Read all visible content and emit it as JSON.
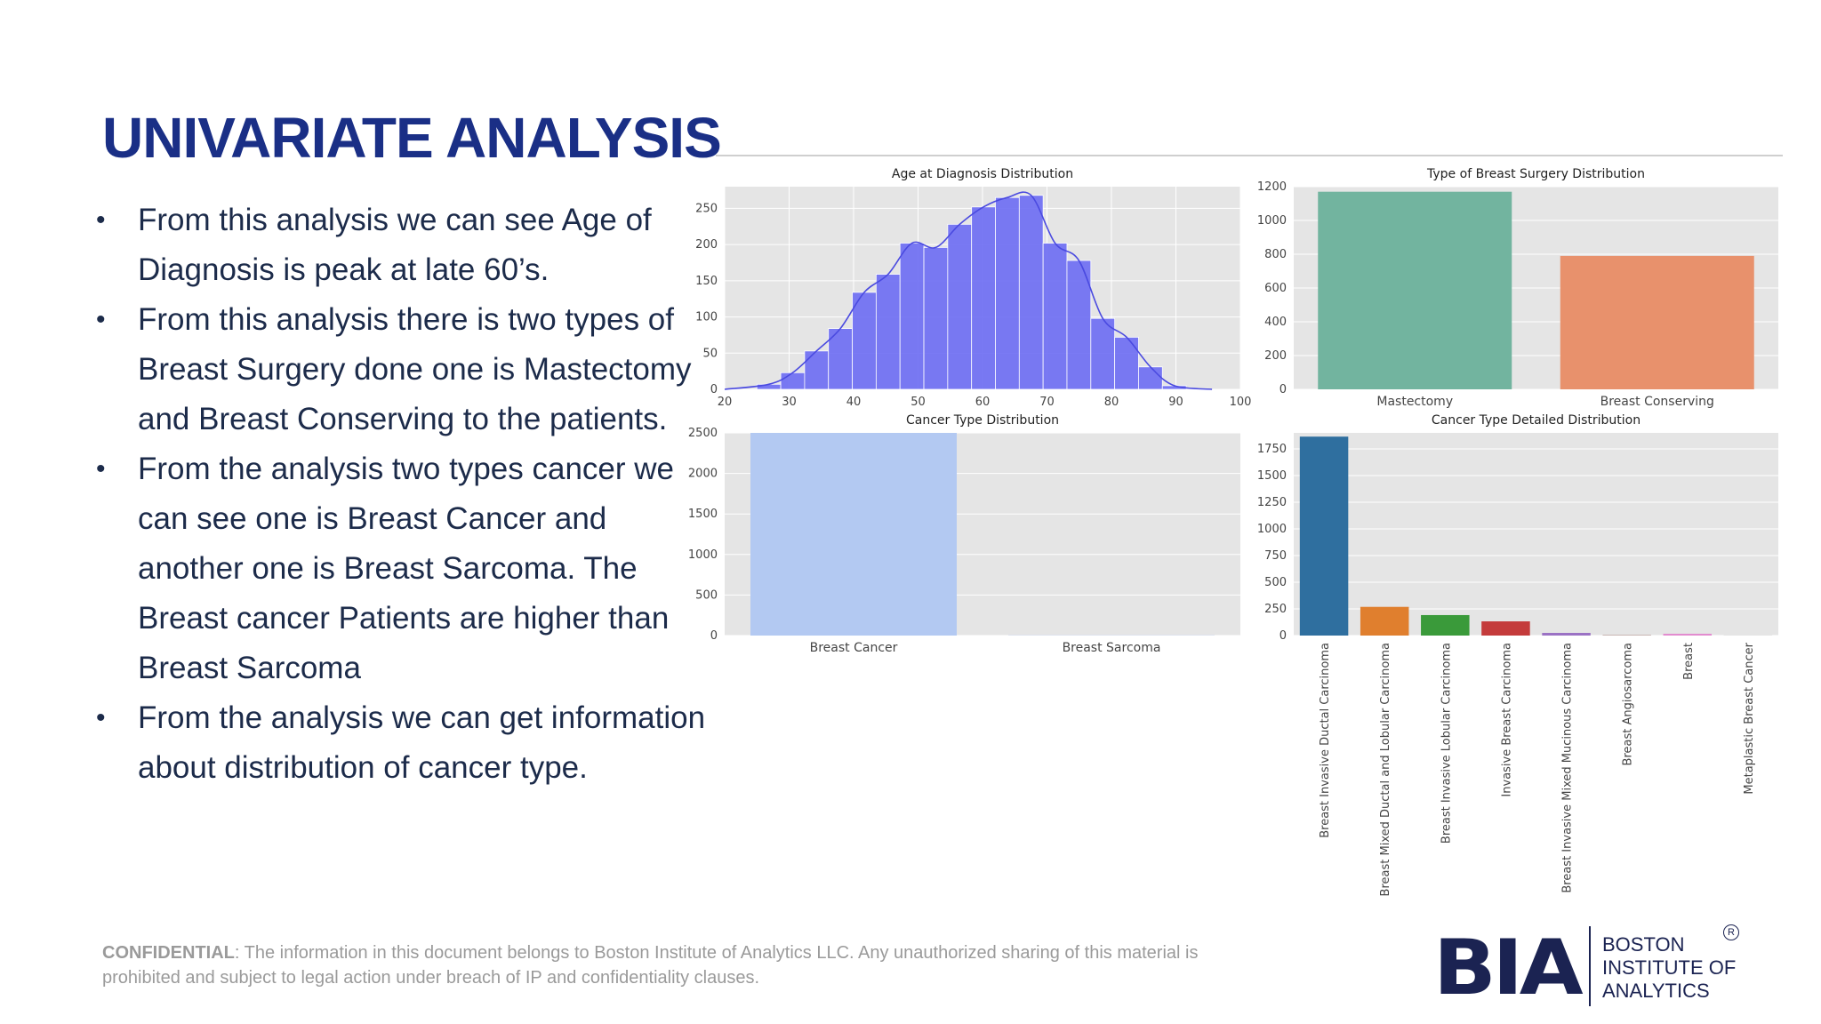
{
  "slide": {
    "title": "UNIVARIATE ANALYSIS",
    "bullets": [
      "From this analysis we can see Age of Diagnosis is peak at late 60’s.",
      "From this analysis there is two types of Breast Surgery done one is Mastectomy and Breast Conserving to the patients.",
      "From the analysis two types cancer we can see one is Breast Cancer  and another one is Breast Sarcoma. The Breast cancer Patients are higher than Breast Sarcoma",
      "From the analysis we can get information about distribution of cancer type."
    ]
  },
  "footer": {
    "confidential_label": "CONFIDENTIAL",
    "confidential_text": ": The information in this document belongs to Boston Institute of Analytics LLC. Any unauthorized sharing of this material is prohibited and subject to legal action under breach of IP and confidentiality clauses."
  },
  "logo": {
    "mark": "BIA",
    "name_lines": [
      "BOSTON",
      "INSTITUTE OF",
      "ANALYTICS"
    ],
    "registered": "R"
  },
  "chart_data": [
    {
      "type": "bar",
      "subtype": "histogram-with-kde",
      "title": "Age at Diagnosis Distribution",
      "color": "#6b6cf3",
      "bin_start": 25,
      "bin_width": 3.7,
      "values": [
        7,
        23,
        53,
        84,
        134,
        159,
        202,
        196,
        228,
        252,
        265,
        268,
        202,
        178,
        98,
        72,
        31,
        5
      ],
      "xlim": [
        20,
        100
      ],
      "xticks": [
        20,
        30,
        40,
        50,
        60,
        70,
        80,
        90,
        100
      ],
      "ylim": [
        0,
        280
      ],
      "yticks": [
        0,
        50,
        100,
        150,
        200,
        250
      ],
      "grid": true
    },
    {
      "type": "bar",
      "title": "Type of Breast Surgery Distribution",
      "categories": [
        "Mastectomy",
        "Breast Conserving"
      ],
      "values": [
        1170,
        790
      ],
      "colors": [
        "#72b49f",
        "#e8916c"
      ],
      "ylim": [
        0,
        1200
      ],
      "yticks": [
        0,
        200,
        400,
        600,
        800,
        1000,
        1200
      ],
      "grid": true
    },
    {
      "type": "bar",
      "title": "Cancer Type Distribution",
      "categories": [
        "Breast Cancer",
        "Breast Sarcoma"
      ],
      "values": [
        2500,
        3
      ],
      "colors": [
        "#b3c9f2",
        "#b3c9f2"
      ],
      "ylim": [
        0,
        2500
      ],
      "yticks": [
        0,
        500,
        1000,
        1500,
        2000,
        2500
      ],
      "grid": true
    },
    {
      "type": "bar",
      "title": "Cancer Type Detailed Distribution",
      "categories": [
        "Breast Invasive Ductal Carcinoma",
        "Breast Mixed Ductal and Lobular Carcinoma",
        "Breast Invasive Lobular Carcinoma",
        "Invasive Breast Carcinoma",
        "Breast Invasive Mixed Mucinous Carcinoma",
        "Breast Angiosarcoma",
        "Breast",
        "Metaplastic Breast Cancer"
      ],
      "values": [
        1865,
        269,
        192,
        133,
        25,
        3,
        17,
        1
      ],
      "colors": [
        "#2f6f9f",
        "#e07f2e",
        "#3a9a3a",
        "#c43b3b",
        "#9b72c4",
        "#8c5a4e",
        "#e28ccf",
        "#8a8a8a"
      ],
      "ylim": [
        0,
        1900
      ],
      "yticks": [
        0,
        250,
        500,
        750,
        1000,
        1250,
        1500,
        1750
      ],
      "grid": true
    }
  ]
}
